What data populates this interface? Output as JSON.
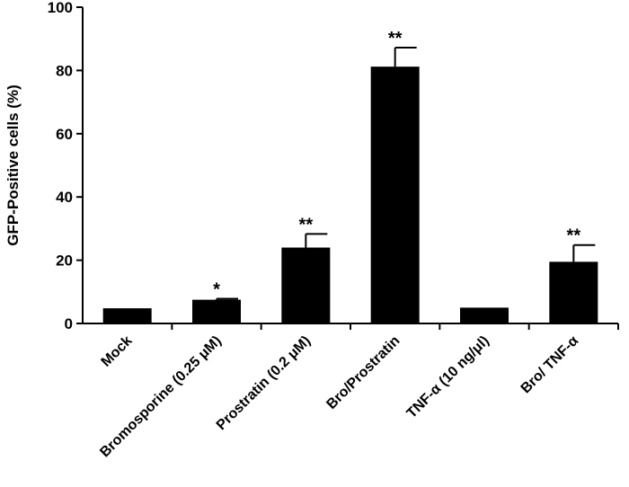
{
  "chart_data": {
    "type": "bar",
    "title": "",
    "xlabel": "",
    "ylabel": "GFP-Positive cells (%)",
    "ylim": [
      0,
      100
    ],
    "yticks": [
      "0",
      "20",
      "40",
      "60",
      "80",
      "100"
    ],
    "categories": [
      "Mock",
      "Bromosporine (0.25 μM)",
      "Prostratin (0.2 μM)",
      "Bro/Prostratin",
      "TNF-α (10 ng/μl)",
      "Bro/ TNF-α"
    ],
    "values": [
      4.8,
      7.5,
      24,
      81.2,
      5.0,
      19.5
    ],
    "errors": [
      0,
      0.3,
      4.3,
      6.0,
      0,
      5.3
    ],
    "significance": [
      "",
      "*",
      "**",
      "**",
      "",
      "**"
    ],
    "grid": false,
    "bar_color": "#000000"
  }
}
